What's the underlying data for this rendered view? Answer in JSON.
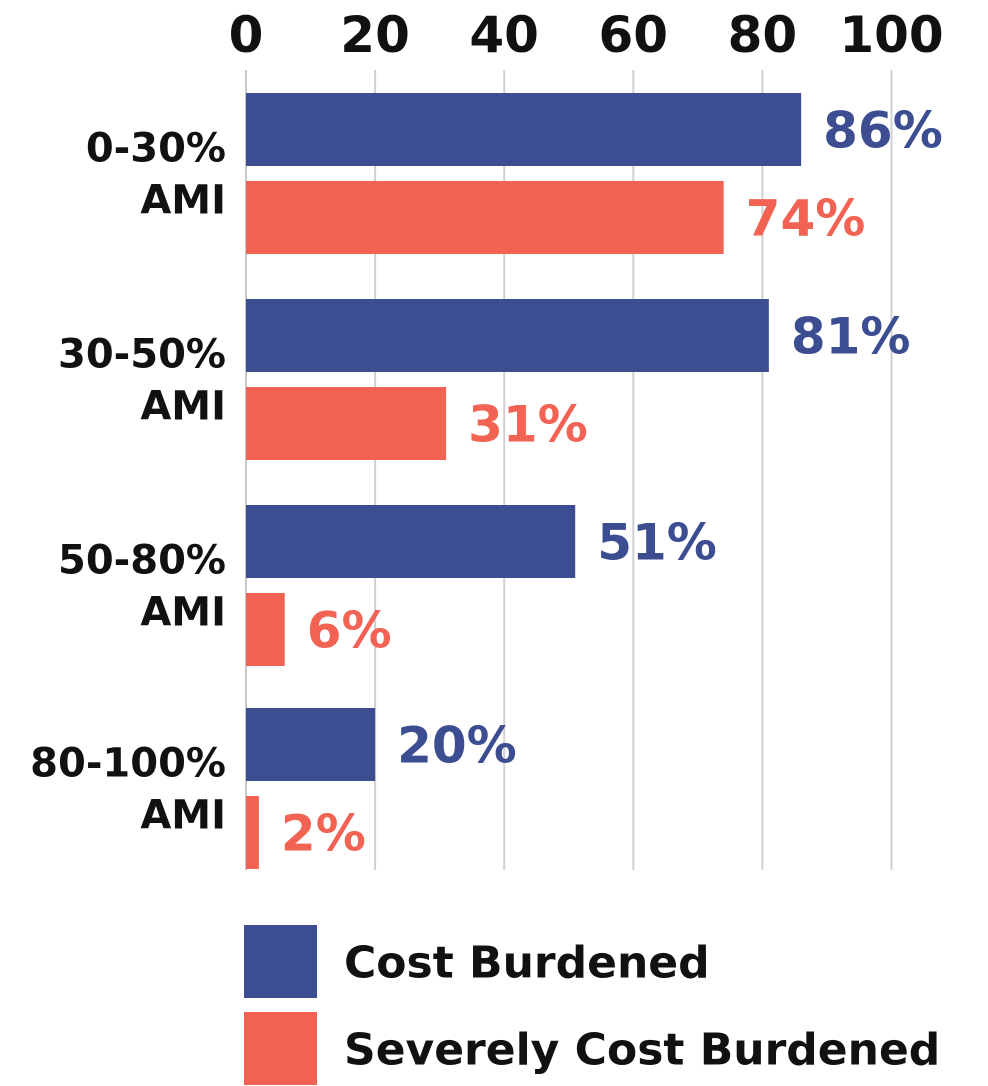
{
  "chart_data": {
    "type": "bar",
    "orientation": "horizontal",
    "categories": [
      [
        "0-30%",
        "AMI"
      ],
      [
        "30-50%",
        "AMI"
      ],
      [
        "50-80%",
        "AMI"
      ],
      [
        "80-100%",
        "AMI"
      ]
    ],
    "series": [
      {
        "name": "Cost Burdened",
        "values": [
          86,
          81,
          51,
          20
        ],
        "labels": [
          "86%",
          "81%",
          "51%",
          "20%"
        ],
        "color": "#3d4d92"
      },
      {
        "name": "Severely Cost Burdened",
        "values": [
          74,
          31,
          6,
          2
        ],
        "labels": [
          "74%",
          "31%",
          "6%",
          "2%"
        ],
        "color": "#f26353"
      }
    ],
    "x_ticks": [
      "0",
      "20",
      "40",
      "60",
      "80",
      "100"
    ],
    "xlim": [
      0,
      100
    ],
    "x_axis_position": "top",
    "grid": true,
    "legend_position": "bottom"
  }
}
